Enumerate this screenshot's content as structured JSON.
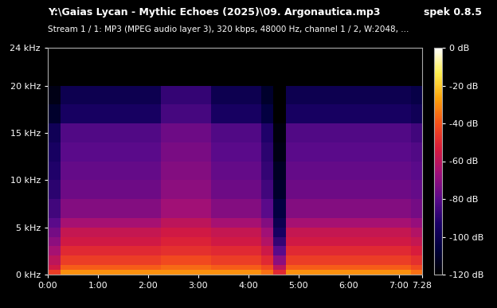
{
  "chart_data": {
    "type": "heatmap",
    "title": "Y:\\Gaias Lycan - Mythic Echoes (2025)\\09. Argonautica.mp3",
    "subtitle": "Stream 1 / 1: MP3 (MPEG audio layer 3), 320 kbps, 48000 Hz, channel 1 / 2, W:2048, ...",
    "annotations": [
      "spek 0.8.5"
    ],
    "xlim": [
      0,
      448
    ],
    "xticks": [
      {
        "value": 0,
        "label": "0:00"
      },
      {
        "value": 60,
        "label": "1:00"
      },
      {
        "value": 120,
        "label": "2:00"
      },
      {
        "value": 180,
        "label": "3:00"
      },
      {
        "value": 240,
        "label": "4:00"
      },
      {
        "value": 300,
        "label": "5:00"
      },
      {
        "value": 360,
        "label": "6:00"
      },
      {
        "value": 420,
        "label": "7:00"
      },
      {
        "value": 448,
        "label": "7:28"
      }
    ],
    "ylim": [
      0,
      24
    ],
    "yticks": [
      {
        "value": 0,
        "label": "0 kHz"
      },
      {
        "value": 5,
        "label": "5 kHz"
      },
      {
        "value": 10,
        "label": "10 kHz"
      },
      {
        "value": 15,
        "label": "15 kHz"
      },
      {
        "value": 20,
        "label": "20 kHz"
      },
      {
        "value": 24,
        "label": "24 kHz"
      }
    ],
    "x_edges": [
      0,
      15,
      30,
      45,
      60,
      75,
      90,
      105,
      120,
      135,
      150,
      165,
      180,
      195,
      210,
      225,
      240,
      255,
      270,
      285,
      300,
      315,
      330,
      345,
      360,
      375,
      390,
      405,
      420,
      435,
      448
    ],
    "y_edges": [
      0,
      0.5,
      1,
      2,
      3,
      4,
      5,
      6,
      8,
      10,
      12,
      14,
      16,
      18,
      20,
      24
    ],
    "cells": [
      [
        -45,
        -55,
        -60,
        -65,
        -70,
        -75,
        -80,
        -85,
        -90,
        -92,
        -95,
        -98,
        -110,
        -115,
        -120
      ],
      [
        -30,
        -38,
        -45,
        -50,
        -55,
        -58,
        -65,
        -72,
        -76,
        -78,
        -80,
        -82,
        -95,
        -100,
        -120
      ],
      [
        -30,
        -38,
        -45,
        -50,
        -55,
        -58,
        -65,
        -72,
        -76,
        -78,
        -80,
        -82,
        -95,
        -100,
        -120
      ],
      [
        -30,
        -38,
        -45,
        -50,
        -55,
        -58,
        -65,
        -72,
        -76,
        -78,
        -80,
        -82,
        -95,
        -100,
        -120
      ],
      [
        -30,
        -38,
        -45,
        -50,
        -55,
        -58,
        -65,
        -72,
        -76,
        -78,
        -80,
        -82,
        -95,
        -100,
        -120
      ],
      [
        -30,
        -38,
        -45,
        -50,
        -55,
        -58,
        -65,
        -72,
        -76,
        -78,
        -80,
        -82,
        -95,
        -100,
        -120
      ],
      [
        -30,
        -38,
        -45,
        -50,
        -55,
        -58,
        -65,
        -72,
        -76,
        -78,
        -80,
        -82,
        -95,
        -100,
        -120
      ],
      [
        -30,
        -38,
        -45,
        -50,
        -55,
        -58,
        -65,
        -72,
        -76,
        -78,
        -80,
        -82,
        -95,
        -100,
        -120
      ],
      [
        -30,
        -38,
        -45,
        -50,
        -55,
        -58,
        -65,
        -72,
        -76,
        -78,
        -80,
        -82,
        -95,
        -100,
        -120
      ],
      [
        -30,
        -36,
        -42,
        -48,
        -52,
        -55,
        -60,
        -66,
        -70,
        -72,
        -74,
        -76,
        -84,
        -88,
        -120
      ],
      [
        -30,
        -36,
        -42,
        -48,
        -52,
        -55,
        -60,
        -66,
        -70,
        -72,
        -74,
        -76,
        -84,
        -88,
        -120
      ],
      [
        -30,
        -36,
        -42,
        -48,
        -52,
        -55,
        -60,
        -66,
        -70,
        -72,
        -74,
        -76,
        -84,
        -88,
        -120
      ],
      [
        -30,
        -36,
        -42,
        -48,
        -52,
        -55,
        -60,
        -66,
        -70,
        -72,
        -74,
        -76,
        -84,
        -88,
        -120
      ],
      [
        -30,
        -38,
        -45,
        -50,
        -55,
        -58,
        -65,
        -72,
        -76,
        -78,
        -80,
        -82,
        -95,
        -100,
        -120
      ],
      [
        -30,
        -38,
        -45,
        -50,
        -55,
        -58,
        -65,
        -72,
        -76,
        -78,
        -80,
        -82,
        -95,
        -100,
        -120
      ],
      [
        -30,
        -38,
        -45,
        -50,
        -55,
        -58,
        -65,
        -72,
        -76,
        -78,
        -80,
        -82,
        -95,
        -100,
        -120
      ],
      [
        -30,
        -38,
        -45,
        -50,
        -55,
        -58,
        -65,
        -72,
        -76,
        -78,
        -80,
        -82,
        -95,
        -100,
        -120
      ],
      [
        -35,
        -42,
        -50,
        -56,
        -62,
        -66,
        -72,
        -80,
        -85,
        -88,
        -90,
        -92,
        -105,
        -110,
        -120
      ],
      [
        -50,
        -60,
        -70,
        -80,
        -88,
        -95,
        -100,
        -105,
        -110,
        -112,
        -115,
        -117,
        -120,
        -120,
        -120
      ],
      [
        -30,
        -38,
        -45,
        -50,
        -55,
        -58,
        -65,
        -72,
        -76,
        -78,
        -80,
        -82,
        -95,
        -100,
        -120
      ],
      [
        -30,
        -38,
        -45,
        -50,
        -55,
        -58,
        -65,
        -72,
        -76,
        -78,
        -80,
        -82,
        -95,
        -100,
        -120
      ],
      [
        -30,
        -38,
        -45,
        -50,
        -55,
        -58,
        -65,
        -72,
        -76,
        -78,
        -80,
        -82,
        -95,
        -100,
        -120
      ],
      [
        -30,
        -38,
        -45,
        -50,
        -55,
        -58,
        -65,
        -72,
        -76,
        -78,
        -80,
        -82,
        -95,
        -100,
        -120
      ],
      [
        -30,
        -38,
        -45,
        -50,
        -55,
        -58,
        -65,
        -72,
        -76,
        -78,
        -80,
        -82,
        -95,
        -100,
        -120
      ],
      [
        -30,
        -38,
        -45,
        -50,
        -55,
        -58,
        -65,
        -72,
        -76,
        -78,
        -80,
        -82,
        -95,
        -100,
        -120
      ],
      [
        -30,
        -38,
        -45,
        -50,
        -55,
        -58,
        -65,
        -72,
        -76,
        -78,
        -80,
        -82,
        -95,
        -100,
        -120
      ],
      [
        -30,
        -38,
        -45,
        -50,
        -55,
        -58,
        -65,
        -72,
        -76,
        -78,
        -80,
        -82,
        -95,
        -100,
        -120
      ],
      [
        -30,
        -38,
        -45,
        -50,
        -55,
        -58,
        -65,
        -72,
        -76,
        -78,
        -80,
        -82,
        -95,
        -100,
        -120
      ],
      [
        -30,
        -38,
        -45,
        -50,
        -55,
        -58,
        -65,
        -72,
        -76,
        -78,
        -80,
        -82,
        -95,
        -100,
        -120
      ],
      [
        -35,
        -42,
        -48,
        -53,
        -58,
        -62,
        -68,
        -75,
        -78,
        -80,
        -82,
        -85,
        -98,
        -103,
        -120
      ]
    ],
    "colorbar": {
      "range": [
        -120,
        0
      ],
      "ticks": [
        {
          "value": 0,
          "label": "0 dB"
        },
        {
          "value": -20,
          "label": "-20 dB"
        },
        {
          "value": -40,
          "label": "-40 dB"
        },
        {
          "value": -60,
          "label": "-60 dB"
        },
        {
          "value": -80,
          "label": "-80 dB"
        },
        {
          "value": -100,
          "label": "-100 dB"
        },
        {
          "value": -120,
          "label": "-120 dB"
        }
      ]
    }
  }
}
